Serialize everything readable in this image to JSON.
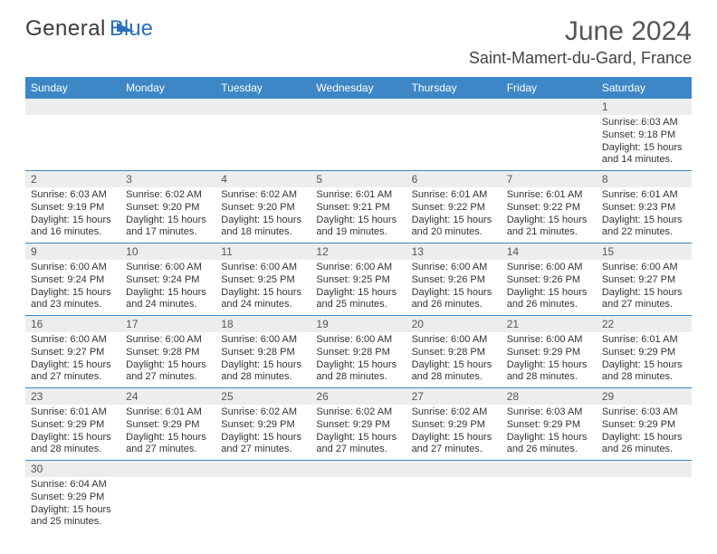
{
  "brand": {
    "part1": "General",
    "part2": "Blue",
    "color_dark": "#3b3b3b",
    "color_blue": "#2a70b8"
  },
  "title": "June 2024",
  "location": "Saint-Mamert-du-Gard, France",
  "header_bg": "#3d87c7",
  "daynum_bg": "#eceeee",
  "weekdays": [
    "Sunday",
    "Monday",
    "Tuesday",
    "Wednesday",
    "Thursday",
    "Friday",
    "Saturday"
  ],
  "weeks": [
    [
      {
        "n": "",
        "lines": [
          "",
          "",
          "",
          ""
        ]
      },
      {
        "n": "",
        "lines": [
          "",
          "",
          "",
          ""
        ]
      },
      {
        "n": "",
        "lines": [
          "",
          "",
          "",
          ""
        ]
      },
      {
        "n": "",
        "lines": [
          "",
          "",
          "",
          ""
        ]
      },
      {
        "n": "",
        "lines": [
          "",
          "",
          "",
          ""
        ]
      },
      {
        "n": "",
        "lines": [
          "",
          "",
          "",
          ""
        ]
      },
      {
        "n": "1",
        "lines": [
          "Sunrise: 6:03 AM",
          "Sunset: 9:18 PM",
          "Daylight: 15 hours",
          "and 14 minutes."
        ]
      }
    ],
    [
      {
        "n": "2",
        "lines": [
          "Sunrise: 6:03 AM",
          "Sunset: 9:19 PM",
          "Daylight: 15 hours",
          "and 16 minutes."
        ]
      },
      {
        "n": "3",
        "lines": [
          "Sunrise: 6:02 AM",
          "Sunset: 9:20 PM",
          "Daylight: 15 hours",
          "and 17 minutes."
        ]
      },
      {
        "n": "4",
        "lines": [
          "Sunrise: 6:02 AM",
          "Sunset: 9:20 PM",
          "Daylight: 15 hours",
          "and 18 minutes."
        ]
      },
      {
        "n": "5",
        "lines": [
          "Sunrise: 6:01 AM",
          "Sunset: 9:21 PM",
          "Daylight: 15 hours",
          "and 19 minutes."
        ]
      },
      {
        "n": "6",
        "lines": [
          "Sunrise: 6:01 AM",
          "Sunset: 9:22 PM",
          "Daylight: 15 hours",
          "and 20 minutes."
        ]
      },
      {
        "n": "7",
        "lines": [
          "Sunrise: 6:01 AM",
          "Sunset: 9:22 PM",
          "Daylight: 15 hours",
          "and 21 minutes."
        ]
      },
      {
        "n": "8",
        "lines": [
          "Sunrise: 6:01 AM",
          "Sunset: 9:23 PM",
          "Daylight: 15 hours",
          "and 22 minutes."
        ]
      }
    ],
    [
      {
        "n": "9",
        "lines": [
          "Sunrise: 6:00 AM",
          "Sunset: 9:24 PM",
          "Daylight: 15 hours",
          "and 23 minutes."
        ]
      },
      {
        "n": "10",
        "lines": [
          "Sunrise: 6:00 AM",
          "Sunset: 9:24 PM",
          "Daylight: 15 hours",
          "and 24 minutes."
        ]
      },
      {
        "n": "11",
        "lines": [
          "Sunrise: 6:00 AM",
          "Sunset: 9:25 PM",
          "Daylight: 15 hours",
          "and 24 minutes."
        ]
      },
      {
        "n": "12",
        "lines": [
          "Sunrise: 6:00 AM",
          "Sunset: 9:25 PM",
          "Daylight: 15 hours",
          "and 25 minutes."
        ]
      },
      {
        "n": "13",
        "lines": [
          "Sunrise: 6:00 AM",
          "Sunset: 9:26 PM",
          "Daylight: 15 hours",
          "and 26 minutes."
        ]
      },
      {
        "n": "14",
        "lines": [
          "Sunrise: 6:00 AM",
          "Sunset: 9:26 PM",
          "Daylight: 15 hours",
          "and 26 minutes."
        ]
      },
      {
        "n": "15",
        "lines": [
          "Sunrise: 6:00 AM",
          "Sunset: 9:27 PM",
          "Daylight: 15 hours",
          "and 27 minutes."
        ]
      }
    ],
    [
      {
        "n": "16",
        "lines": [
          "Sunrise: 6:00 AM",
          "Sunset: 9:27 PM",
          "Daylight: 15 hours",
          "and 27 minutes."
        ]
      },
      {
        "n": "17",
        "lines": [
          "Sunrise: 6:00 AM",
          "Sunset: 9:28 PM",
          "Daylight: 15 hours",
          "and 27 minutes."
        ]
      },
      {
        "n": "18",
        "lines": [
          "Sunrise: 6:00 AM",
          "Sunset: 9:28 PM",
          "Daylight: 15 hours",
          "and 28 minutes."
        ]
      },
      {
        "n": "19",
        "lines": [
          "Sunrise: 6:00 AM",
          "Sunset: 9:28 PM",
          "Daylight: 15 hours",
          "and 28 minutes."
        ]
      },
      {
        "n": "20",
        "lines": [
          "Sunrise: 6:00 AM",
          "Sunset: 9:28 PM",
          "Daylight: 15 hours",
          "and 28 minutes."
        ]
      },
      {
        "n": "21",
        "lines": [
          "Sunrise: 6:00 AM",
          "Sunset: 9:29 PM",
          "Daylight: 15 hours",
          "and 28 minutes."
        ]
      },
      {
        "n": "22",
        "lines": [
          "Sunrise: 6:01 AM",
          "Sunset: 9:29 PM",
          "Daylight: 15 hours",
          "and 28 minutes."
        ]
      }
    ],
    [
      {
        "n": "23",
        "lines": [
          "Sunrise: 6:01 AM",
          "Sunset: 9:29 PM",
          "Daylight: 15 hours",
          "and 28 minutes."
        ]
      },
      {
        "n": "24",
        "lines": [
          "Sunrise: 6:01 AM",
          "Sunset: 9:29 PM",
          "Daylight: 15 hours",
          "and 27 minutes."
        ]
      },
      {
        "n": "25",
        "lines": [
          "Sunrise: 6:02 AM",
          "Sunset: 9:29 PM",
          "Daylight: 15 hours",
          "and 27 minutes."
        ]
      },
      {
        "n": "26",
        "lines": [
          "Sunrise: 6:02 AM",
          "Sunset: 9:29 PM",
          "Daylight: 15 hours",
          "and 27 minutes."
        ]
      },
      {
        "n": "27",
        "lines": [
          "Sunrise: 6:02 AM",
          "Sunset: 9:29 PM",
          "Daylight: 15 hours",
          "and 27 minutes."
        ]
      },
      {
        "n": "28",
        "lines": [
          "Sunrise: 6:03 AM",
          "Sunset: 9:29 PM",
          "Daylight: 15 hours",
          "and 26 minutes."
        ]
      },
      {
        "n": "29",
        "lines": [
          "Sunrise: 6:03 AM",
          "Sunset: 9:29 PM",
          "Daylight: 15 hours",
          "and 26 minutes."
        ]
      }
    ],
    [
      {
        "n": "30",
        "lines": [
          "Sunrise: 6:04 AM",
          "Sunset: 9:29 PM",
          "Daylight: 15 hours",
          "and 25 minutes."
        ]
      },
      {
        "n": "",
        "lines": [
          "",
          "",
          "",
          ""
        ]
      },
      {
        "n": "",
        "lines": [
          "",
          "",
          "",
          ""
        ]
      },
      {
        "n": "",
        "lines": [
          "",
          "",
          "",
          ""
        ]
      },
      {
        "n": "",
        "lines": [
          "",
          "",
          "",
          ""
        ]
      },
      {
        "n": "",
        "lines": [
          "",
          "",
          "",
          ""
        ]
      },
      {
        "n": "",
        "lines": [
          "",
          "",
          "",
          ""
        ]
      }
    ]
  ]
}
